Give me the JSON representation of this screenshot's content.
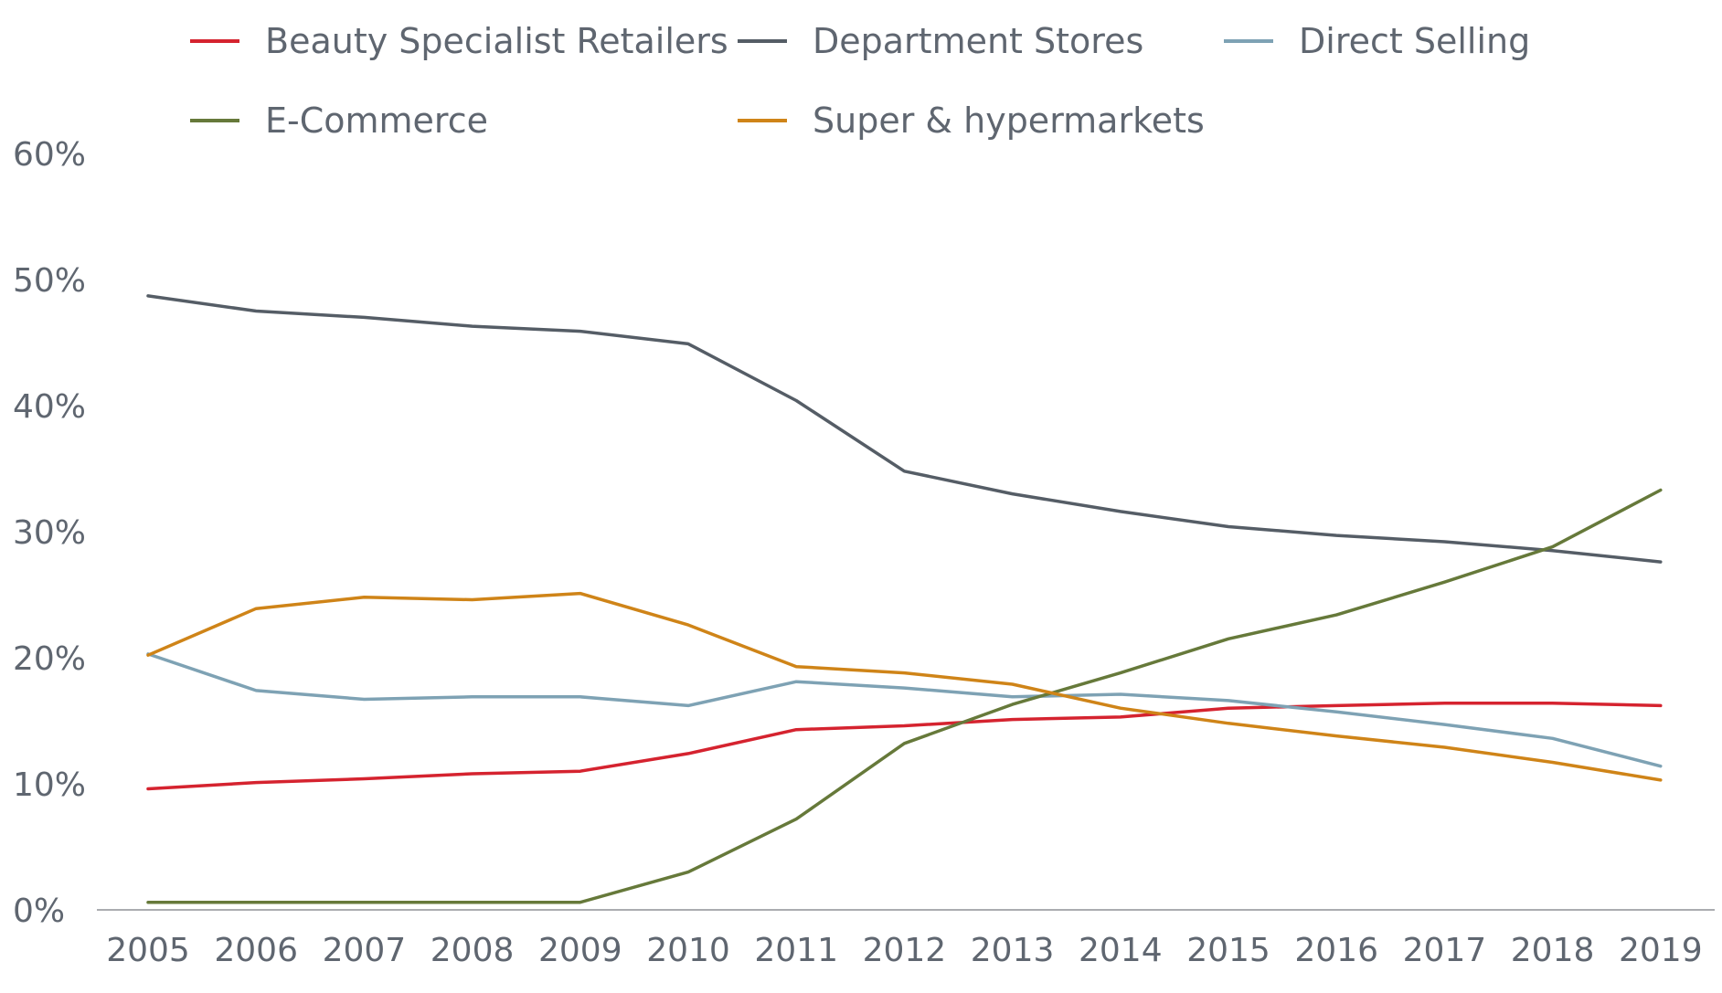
{
  "chart_data": {
    "type": "line",
    "title": "",
    "xlabel": "",
    "ylabel": "",
    "ylim": [
      0,
      60
    ],
    "yticks": [
      "0%",
      "10%",
      "20%",
      "30%",
      "40%",
      "50%",
      "60%"
    ],
    "grid": false,
    "legend_position": "top",
    "categories": [
      "2005",
      "2006",
      "2007",
      "2008",
      "2009",
      "2010",
      "2011",
      "2012",
      "2013",
      "2014",
      "2015",
      "2016",
      "2017",
      "2018",
      "2019"
    ],
    "series": [
      {
        "name": "Beauty Specialist Retailers",
        "color": "#d5232f",
        "values": [
          9.6,
          10.1,
          10.4,
          10.8,
          11.0,
          12.4,
          14.3,
          14.6,
          15.1,
          15.3,
          16.0,
          16.2,
          16.4,
          16.4,
          16.2
        ]
      },
      {
        "name": "Department Stores",
        "color": "#555d66",
        "values": [
          48.7,
          47.5,
          47.0,
          46.3,
          45.9,
          44.9,
          40.4,
          34.8,
          33.0,
          31.6,
          30.4,
          29.7,
          29.2,
          28.5,
          27.6
        ]
      },
      {
        "name": "Direct Selling",
        "color": "#7ea2b4",
        "values": [
          20.3,
          17.4,
          16.7,
          16.9,
          16.9,
          16.2,
          18.1,
          17.6,
          16.9,
          17.1,
          16.6,
          15.7,
          14.7,
          13.6,
          11.4
        ]
      },
      {
        "name": "E-Commerce",
        "color": "#66793a",
        "values": [
          0.6,
          0.6,
          0.6,
          0.6,
          0.6,
          3.0,
          7.2,
          13.2,
          16.3,
          18.8,
          21.5,
          23.4,
          26.0,
          28.8,
          33.3
        ]
      },
      {
        "name": "Super & hypermarkets",
        "color": "#cf8418",
        "values": [
          20.2,
          23.9,
          24.8,
          24.6,
          25.1,
          22.6,
          19.3,
          18.8,
          17.9,
          16.0,
          14.8,
          13.8,
          12.9,
          11.7,
          10.3
        ]
      }
    ]
  }
}
